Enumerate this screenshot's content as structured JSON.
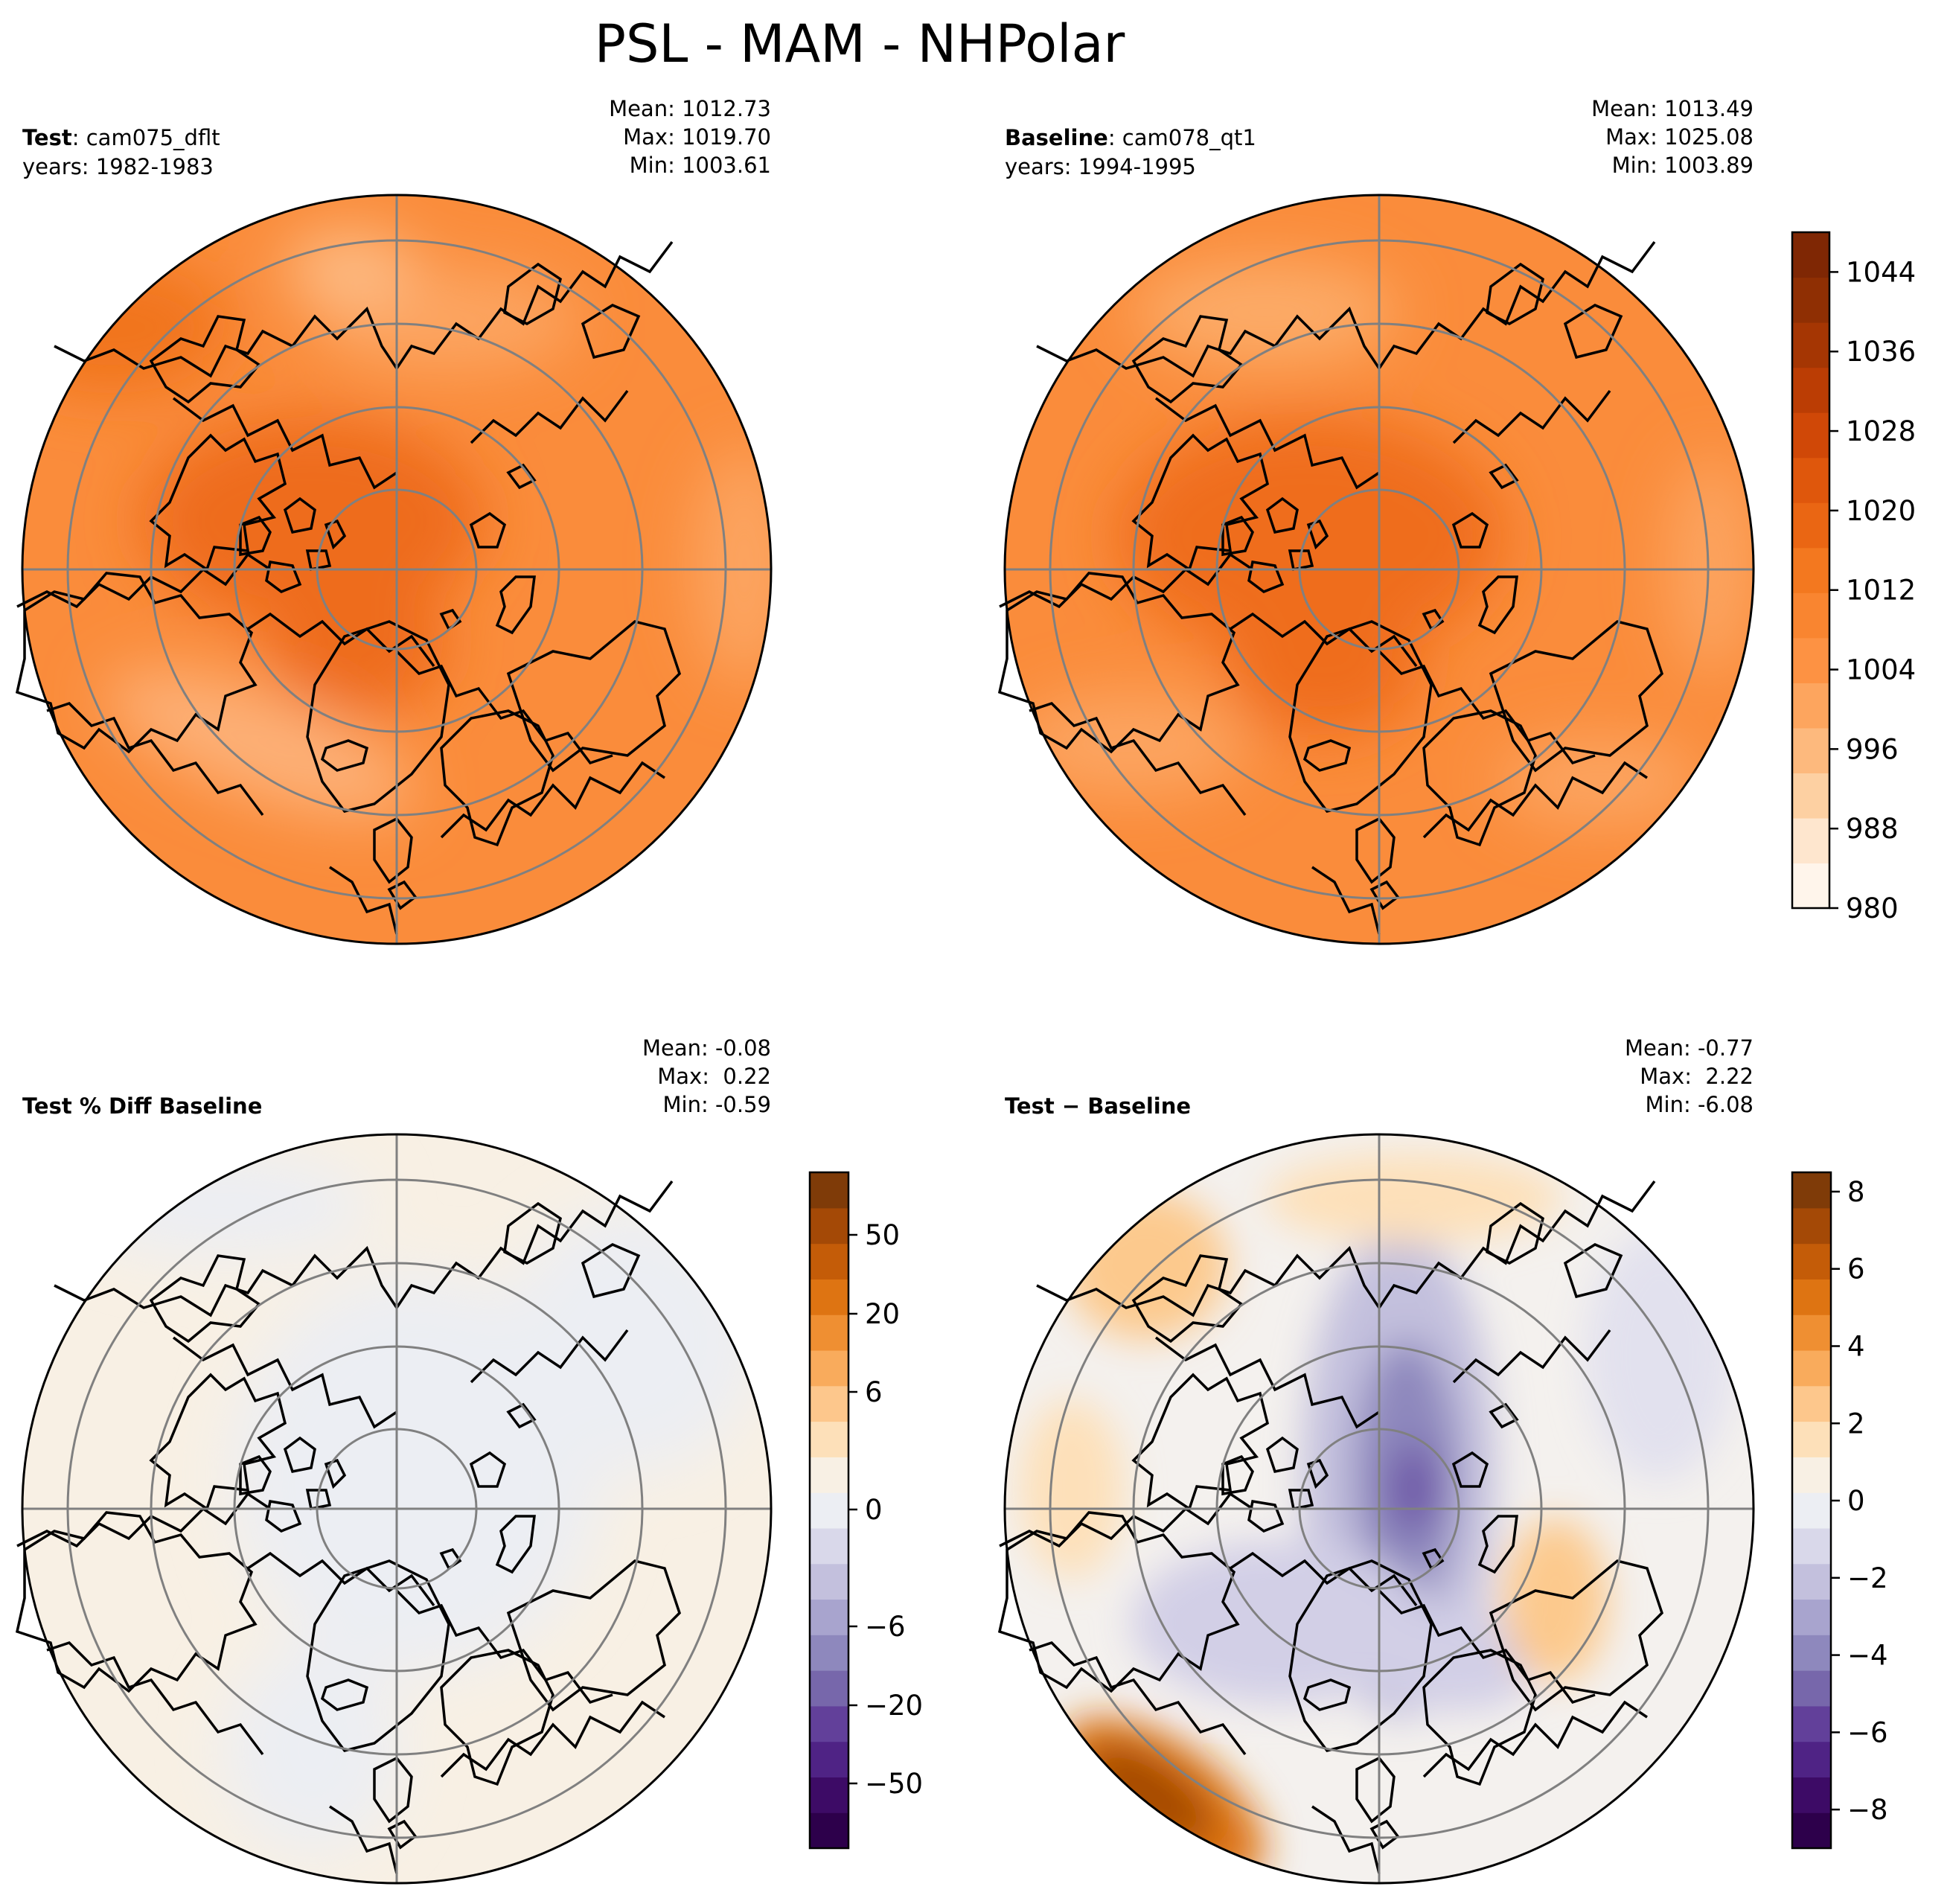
{
  "title": "PSL - MAM - NHPolar",
  "panels": {
    "test": {
      "label_bold": "Test",
      "label_rest": ": cam075_dflt",
      "years": "years: 1982-1983",
      "stats": [
        "Mean: 1012.73",
        "Max: 1019.70",
        "Min: 1003.61"
      ]
    },
    "baseline": {
      "label_bold": "Baseline",
      "label_rest": ": cam078_qt1",
      "years": "years: 1994-1995",
      "stats": [
        "Mean: 1013.49",
        "Max: 1025.08",
        "Min: 1003.89"
      ]
    },
    "pctdiff": {
      "label_bold": "Test % Diff Baseline",
      "stats": [
        "Mean: -0.08",
        "Max:  0.22",
        "Min: -0.59"
      ]
    },
    "diff": {
      "label_bold": "Test − Baseline",
      "stats": [
        "Mean: -0.77",
        "Max:  2.22",
        "Min: -6.08"
      ]
    }
  },
  "colorbars": {
    "psl": {
      "ticks": [
        "1044",
        "1036",
        "1028",
        "1020",
        "1012",
        "1004",
        "996",
        "988",
        "980"
      ],
      "colors": [
        "#fff5eb",
        "#fee6ce",
        "#fdd0a2",
        "#fdb97d",
        "#fda55e",
        "#fd9243",
        "#f98530",
        "#f3781f",
        "#ea6613",
        "#df570c",
        "#d04807",
        "#bb3d04",
        "#a53603",
        "#8f2f03",
        "#7f2704"
      ]
    },
    "pct": {
      "ticks": [
        "50",
        "20",
        "6",
        "0",
        "−6",
        "−20",
        "−50"
      ],
      "colors": [
        "#2d004b",
        "#3d0b66",
        "#4f2385",
        "#62409a",
        "#7767ab",
        "#8e88bd",
        "#a8a4ce",
        "#c3c0dd",
        "#d9d8ea",
        "#eceef3",
        "#f8f0e4",
        "#fde0b9",
        "#fdc78c",
        "#f9ab5c",
        "#ef8f32",
        "#de7412",
        "#c45c08",
        "#a44906",
        "#7f3b08"
      ]
    },
    "diff": {
      "ticks": [
        "8",
        "6",
        "4",
        "2",
        "0",
        "−2",
        "−4",
        "−6",
        "−8"
      ],
      "colors": [
        "#2d004b",
        "#3d0b66",
        "#4f2385",
        "#62409a",
        "#7767ab",
        "#8e88bd",
        "#a8a4ce",
        "#c3c0dd",
        "#d9d8ea",
        "#eceef3",
        "#f8f0e4",
        "#fde0b9",
        "#fdc78c",
        "#f9ab5c",
        "#ef8f32",
        "#de7412",
        "#c45c08",
        "#a44906",
        "#7f3b08"
      ]
    }
  },
  "map_colors": {
    "psl_base": "#fa8c3b",
    "psl_high": "#ef6f1e",
    "psl_low": "#fdad6d",
    "diff_base": "#f4f1ee",
    "diff_orange": "#fcc98d",
    "diff_dark_orange": "#b0520a",
    "diff_purple": "#b9b3d6",
    "diff_dark_purple": "#6f5aa8",
    "grid": "#808080"
  }
}
